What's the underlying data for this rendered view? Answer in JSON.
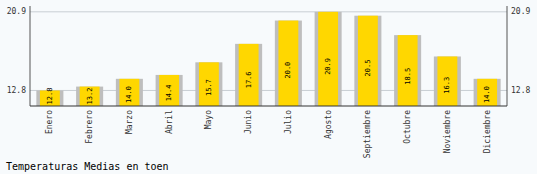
{
  "chart_data": {
    "type": "bar",
    "title": "Temperaturas Medias en toen",
    "categories": [
      "Enero",
      "Febrero",
      "Marzo",
      "Abril",
      "Mayo",
      "Junio",
      "Julio",
      "Agosto",
      "Septiembre",
      "Octubre",
      "Noviembre",
      "Diciembre"
    ],
    "values": [
      12.8,
      13.2,
      14.0,
      14.4,
      15.7,
      17.6,
      20.0,
      20.9,
      20.5,
      18.5,
      16.3,
      14.0
    ],
    "value_labels": [
      "12.8",
      "13.2",
      "14.0",
      "14.4",
      "15.7",
      "17.6",
      "20.0",
      "20.9",
      "20.5",
      "18.5",
      "16.3",
      "14.0"
    ],
    "data_labels": true,
    "color": "#FFD700",
    "ylim": [
      11.2,
      21.5
    ],
    "yticks": [
      12.8,
      20.9
    ],
    "grid": true
  }
}
